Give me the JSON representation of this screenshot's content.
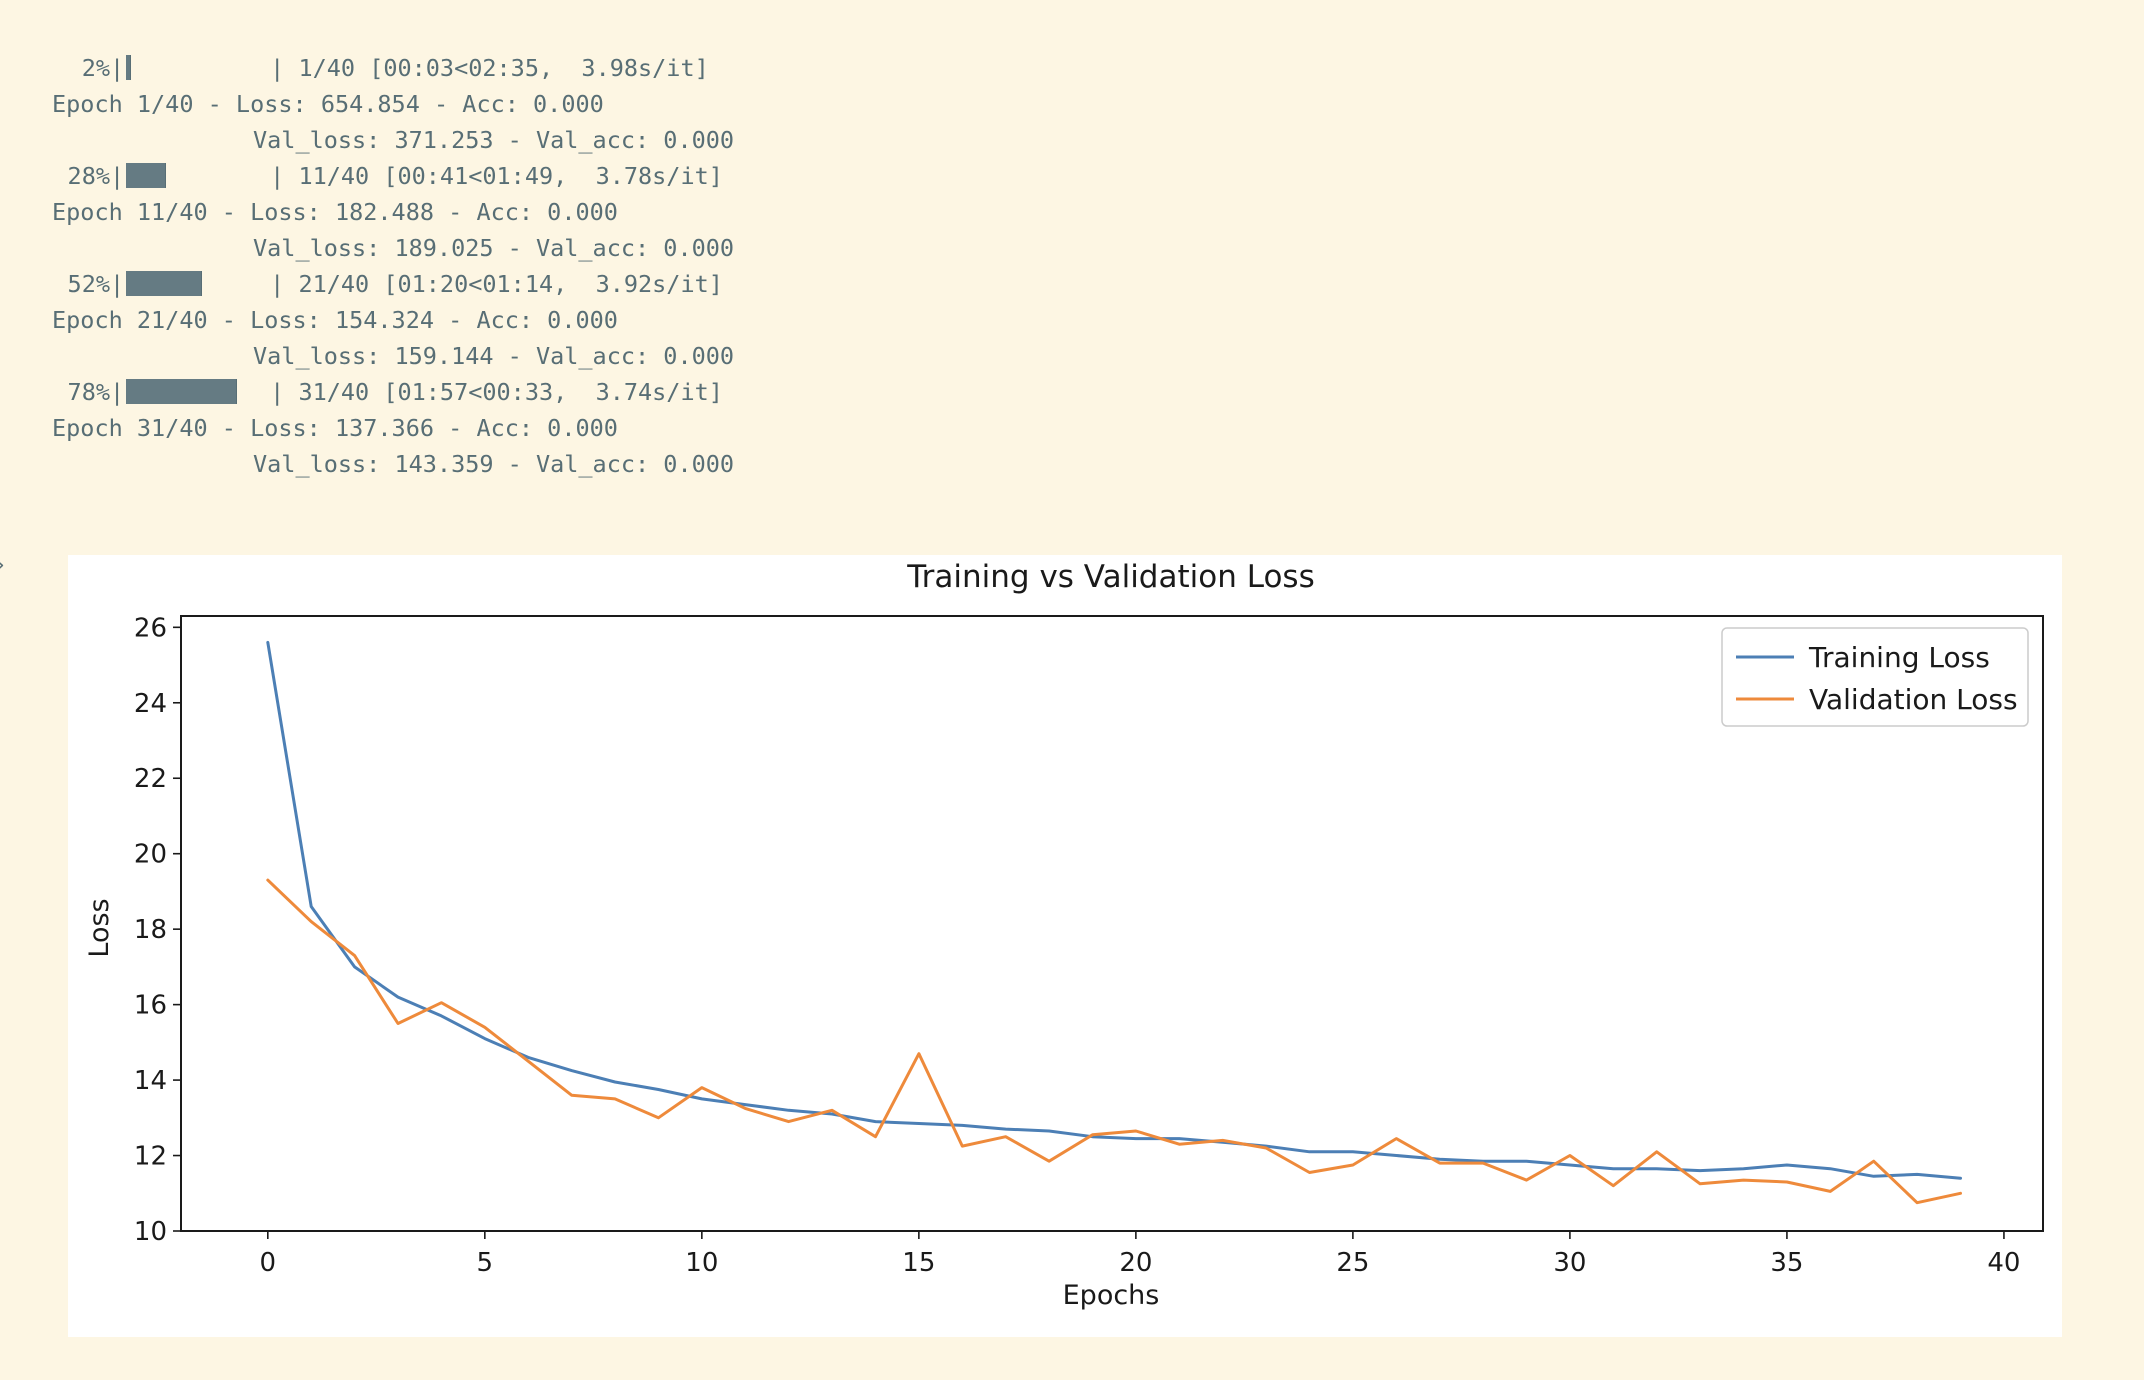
{
  "cell_output": {
    "prompt_marker": "›",
    "progress": [
      {
        "percent": "2%",
        "fraction": 0.025,
        "status": "| 1/40 [00:03<02:35,  3.98s/it]",
        "epoch_line": "Epoch 1/40 - Loss: 654.854 - Acc: 0.000",
        "val_line": "Val_loss: 371.253 - Val_acc: 0.000"
      },
      {
        "percent": "28%",
        "fraction": 0.275,
        "status": "| 11/40 [00:41<01:49,  3.78s/it]",
        "epoch_line": "Epoch 11/40 - Loss: 182.488 - Acc: 0.000",
        "val_line": "Val_loss: 189.025 - Val_acc: 0.000"
      },
      {
        "percent": "52%",
        "fraction": 0.525,
        "status": "| 21/40 [01:20<01:14,  3.92s/it]",
        "epoch_line": "Epoch 21/40 - Loss: 154.324 - Acc: 0.000",
        "val_line": "Val_loss: 159.144 - Val_acc: 0.000"
      },
      {
        "percent": "78%",
        "fraction": 0.775,
        "status": "| 31/40 [01:57<00:33,  3.74s/it]",
        "epoch_line": "Epoch 31/40 - Loss: 137.366 - Acc: 0.000",
        "val_line": "Val_loss: 143.359 - Val_acc: 0.000"
      }
    ]
  },
  "colors": {
    "background": "#fdf6e3",
    "output_text": "#586e75",
    "progress_fill": "#657b83",
    "training": "#4c7fb5",
    "validation": "#ee8a3b"
  },
  "chart_data": {
    "type": "line",
    "title": "Training vs Validation Loss",
    "xlabel": "Epochs",
    "ylabel": "Loss",
    "xlim": [
      -2,
      40.9
    ],
    "ylim": [
      10,
      26.3
    ],
    "xticks": [
      0,
      5,
      10,
      15,
      20,
      25,
      30,
      35,
      40
    ],
    "yticks": [
      10,
      12,
      14,
      16,
      18,
      20,
      22,
      24,
      26
    ],
    "grid": false,
    "legend_position": "top-right",
    "x": [
      0,
      1,
      2,
      3,
      4,
      5,
      6,
      7,
      8,
      9,
      10,
      11,
      12,
      13,
      14,
      15,
      16,
      17,
      18,
      19,
      20,
      21,
      22,
      23,
      24,
      25,
      26,
      27,
      28,
      29,
      30,
      31,
      32,
      33,
      34,
      35,
      36,
      37,
      38,
      39
    ],
    "series": [
      {
        "name": "Training Loss",
        "color": "#4c7fb5",
        "values": [
          25.6,
          18.6,
          17.0,
          16.2,
          15.7,
          15.1,
          14.6,
          14.25,
          13.95,
          13.75,
          13.5,
          13.35,
          13.2,
          13.1,
          12.9,
          12.85,
          12.8,
          12.7,
          12.65,
          12.5,
          12.45,
          12.45,
          12.35,
          12.25,
          12.1,
          12.1,
          12.0,
          11.9,
          11.85,
          11.85,
          11.75,
          11.65,
          11.65,
          11.6,
          11.65,
          11.75,
          11.65,
          11.45,
          11.5,
          11.4
        ]
      },
      {
        "name": "Validation Loss",
        "color": "#ee8a3b",
        "values": [
          19.3,
          18.2,
          17.3,
          15.5,
          16.05,
          15.4,
          14.5,
          13.6,
          13.5,
          13.0,
          13.8,
          13.25,
          12.9,
          13.2,
          12.5,
          14.7,
          12.25,
          12.5,
          11.85,
          12.55,
          12.65,
          12.3,
          12.4,
          12.2,
          11.55,
          11.75,
          12.45,
          11.8,
          11.8,
          11.35,
          12.0,
          11.2,
          12.1,
          11.25,
          11.35,
          11.3,
          11.05,
          11.85,
          10.75,
          11.0
        ]
      }
    ]
  }
}
